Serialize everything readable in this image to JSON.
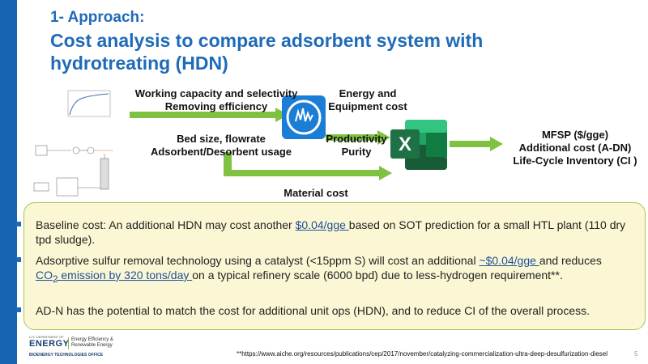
{
  "header": {
    "pre_title": "1- Approach:",
    "title": "Cost analysis to compare adsorbent system with hydrotreating (HDN)"
  },
  "flow": {
    "label_top_line1": "Working capacity and selectivity",
    "label_top_line2": "Removing efficiency",
    "label_mid_line1": "Bed size, flowrate",
    "label_mid_line2": "Adsorbent/Desorbent usage",
    "label_energy_line1": "Energy and",
    "label_energy_line2": "Equipment cost",
    "label_prod_line1": "Productivity",
    "label_prod_line2": "Purity",
    "label_material": "Material cost",
    "output_line1": "MFSP ($/gge)",
    "output_line2": "Additional cost (A-DN)",
    "output_line3": "Life-Cycle Inventory (CI )",
    "excel_letter": "X"
  },
  "bullets": {
    "b1_pre": "Baseline cost: An additional HDN may cost another ",
    "b1_link": "$0.04/gge ",
    "b1_post": "based on SOT prediction for a small HTL plant (110 dry tpd sludge).",
    "b2_pre": "Adsorptive sulfur removal technology using a catalyst (<15ppm S) will cost an additional ",
    "b2_link": "~$0.04/gge ",
    "b2_mid": "and reduces ",
    "b2_co": "CO",
    "b2_sub": "2",
    "b2_em": " emission by 320 tons/day ",
    "b2_post": "on a typical refinery scale (6000 bpd) due to less-hydrogen requirement**.",
    "b3": "AD-N has the potential to match the cost for additional unit ops (HDN), and to reduce CI of the overall process."
  },
  "footer": {
    "logo_small": "U.S. DEPARTMENT OF",
    "logo_energy": "ENERGY",
    "logo_right1": "Energy Efficiency &",
    "logo_right2": "Renewable Energy",
    "logo_office": "BIOENERGY TECHNOLOGIES OFFICE",
    "footnote": "**https://www.aiche.org/resources/publications/cep/2017/november/catalyzing-commercialization-ultra-deep-desulfurization-diesel",
    "page_number": "5"
  },
  "colors": {
    "accent_blue": "#1f6bb8",
    "arrow_green": "#7fc241",
    "callout_bg": "#fbf7d4",
    "callout_border": "#a9c75a",
    "excel_green": "#1e7145"
  }
}
